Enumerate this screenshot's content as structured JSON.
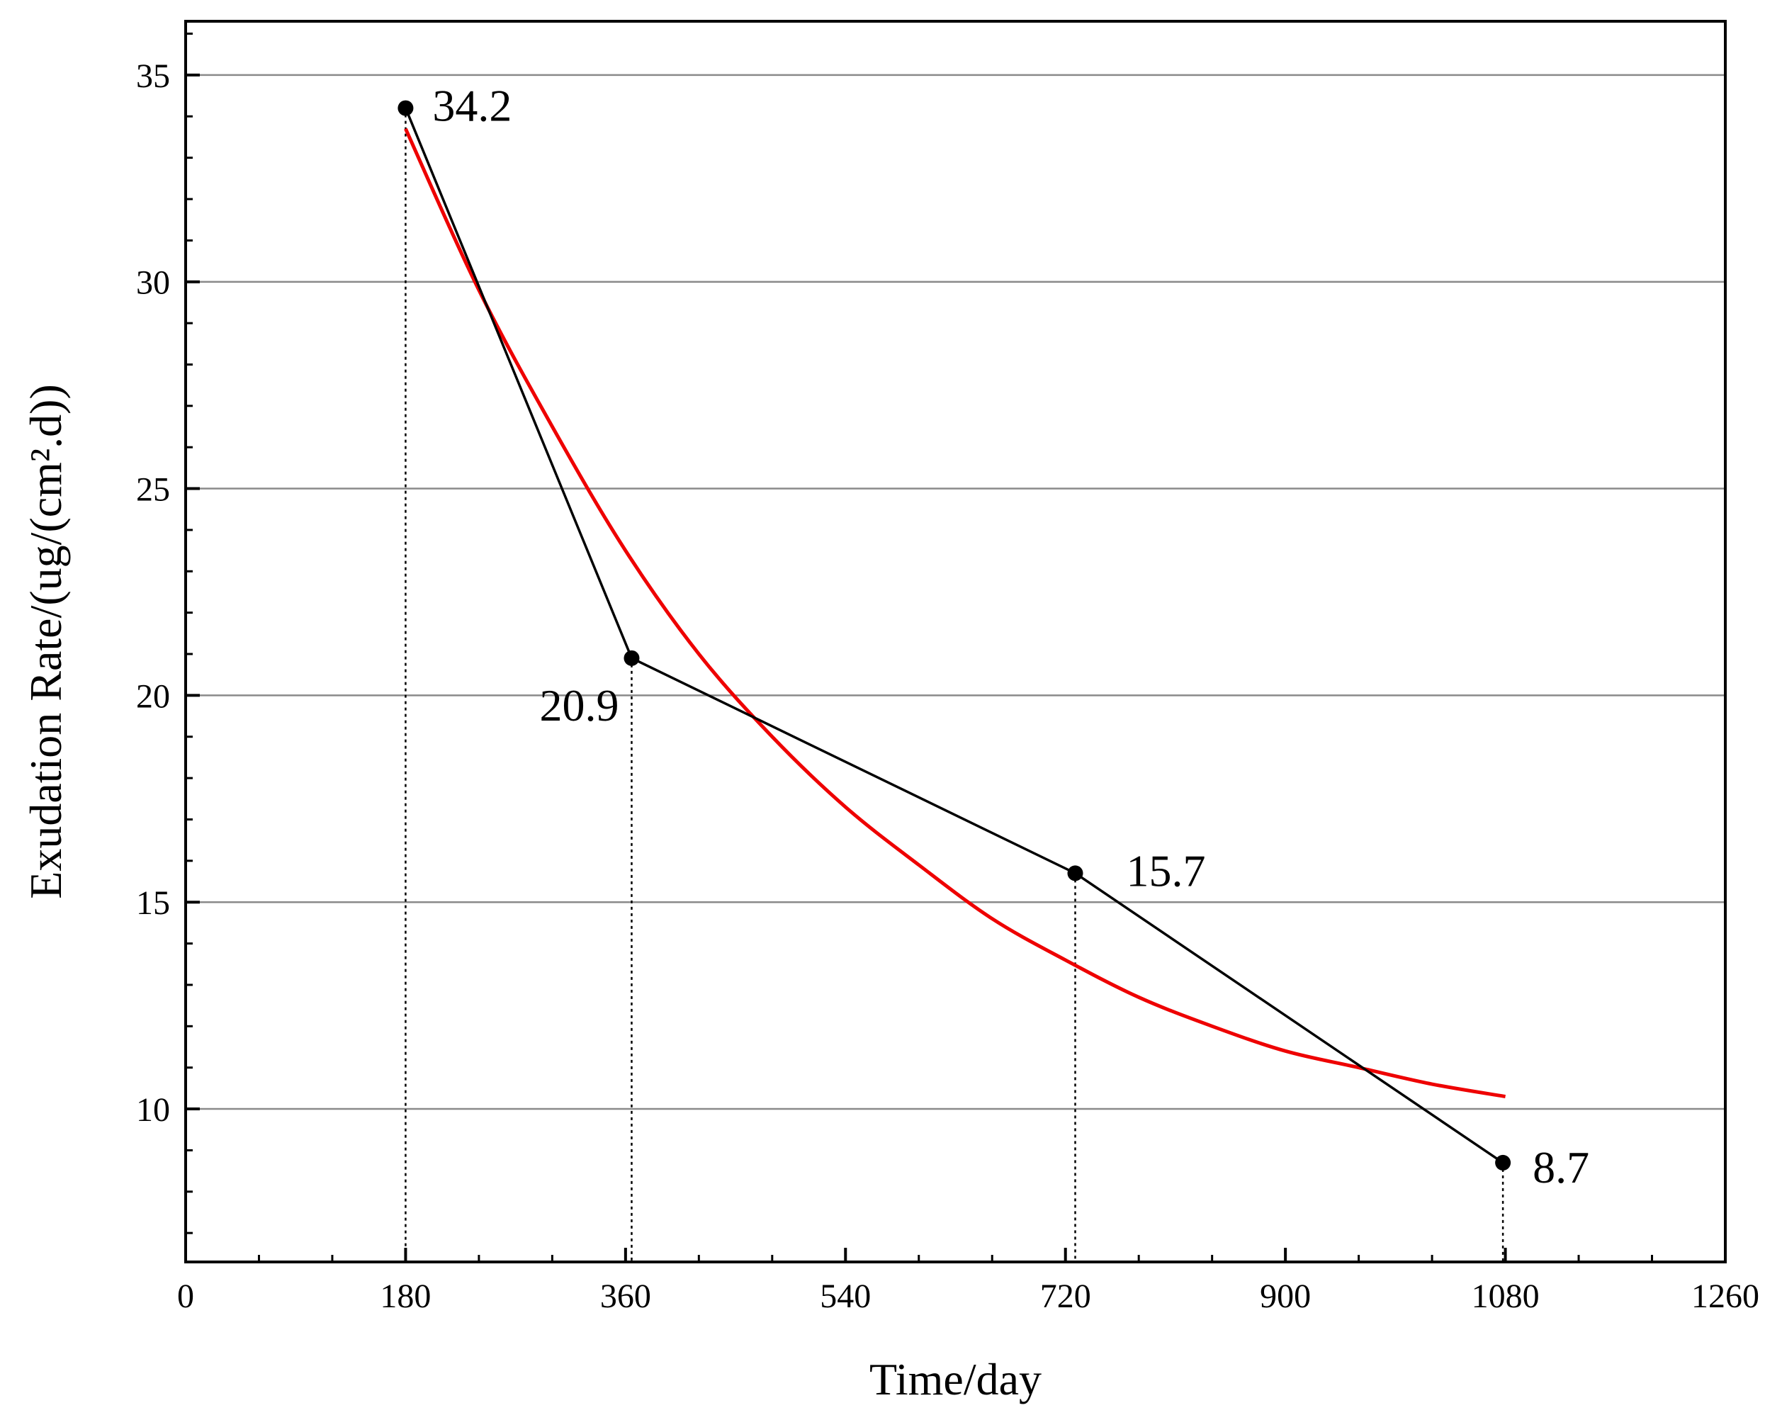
{
  "chart_data": {
    "type": "line",
    "xlabel": "Time/day",
    "ylabel": "Exudation Rate/(ug/(cm².d))",
    "xlim": [
      0,
      1260
    ],
    "ylim": [
      6.3,
      36.3
    ],
    "xticks": [
      0,
      180,
      360,
      540,
      720,
      900,
      1080,
      1260
    ],
    "yticks": [
      10,
      15,
      20,
      25,
      30,
      35
    ],
    "grid": "horizontal",
    "series": [
      {
        "type": "line-markers",
        "color": "#000000",
        "x": [
          180,
          365,
          728,
          1078
        ],
        "y": [
          34.2,
          20.9,
          15.7,
          8.7
        ],
        "labels": [
          "34.2",
          "20.9",
          "15.7",
          "8.7"
        ]
      },
      {
        "type": "fit-curve",
        "color": "#ee0000",
        "x": [
          180,
          240,
          300,
          360,
          420,
          480,
          540,
          600,
          660,
          720,
          780,
          840,
          900,
          960,
          1020,
          1080
        ],
        "y": [
          33.7,
          29.8,
          26.5,
          23.5,
          21.0,
          19.0,
          17.3,
          15.9,
          14.6,
          13.6,
          12.7,
          12.0,
          11.4,
          11.0,
          10.6,
          10.3
        ]
      }
    ]
  }
}
